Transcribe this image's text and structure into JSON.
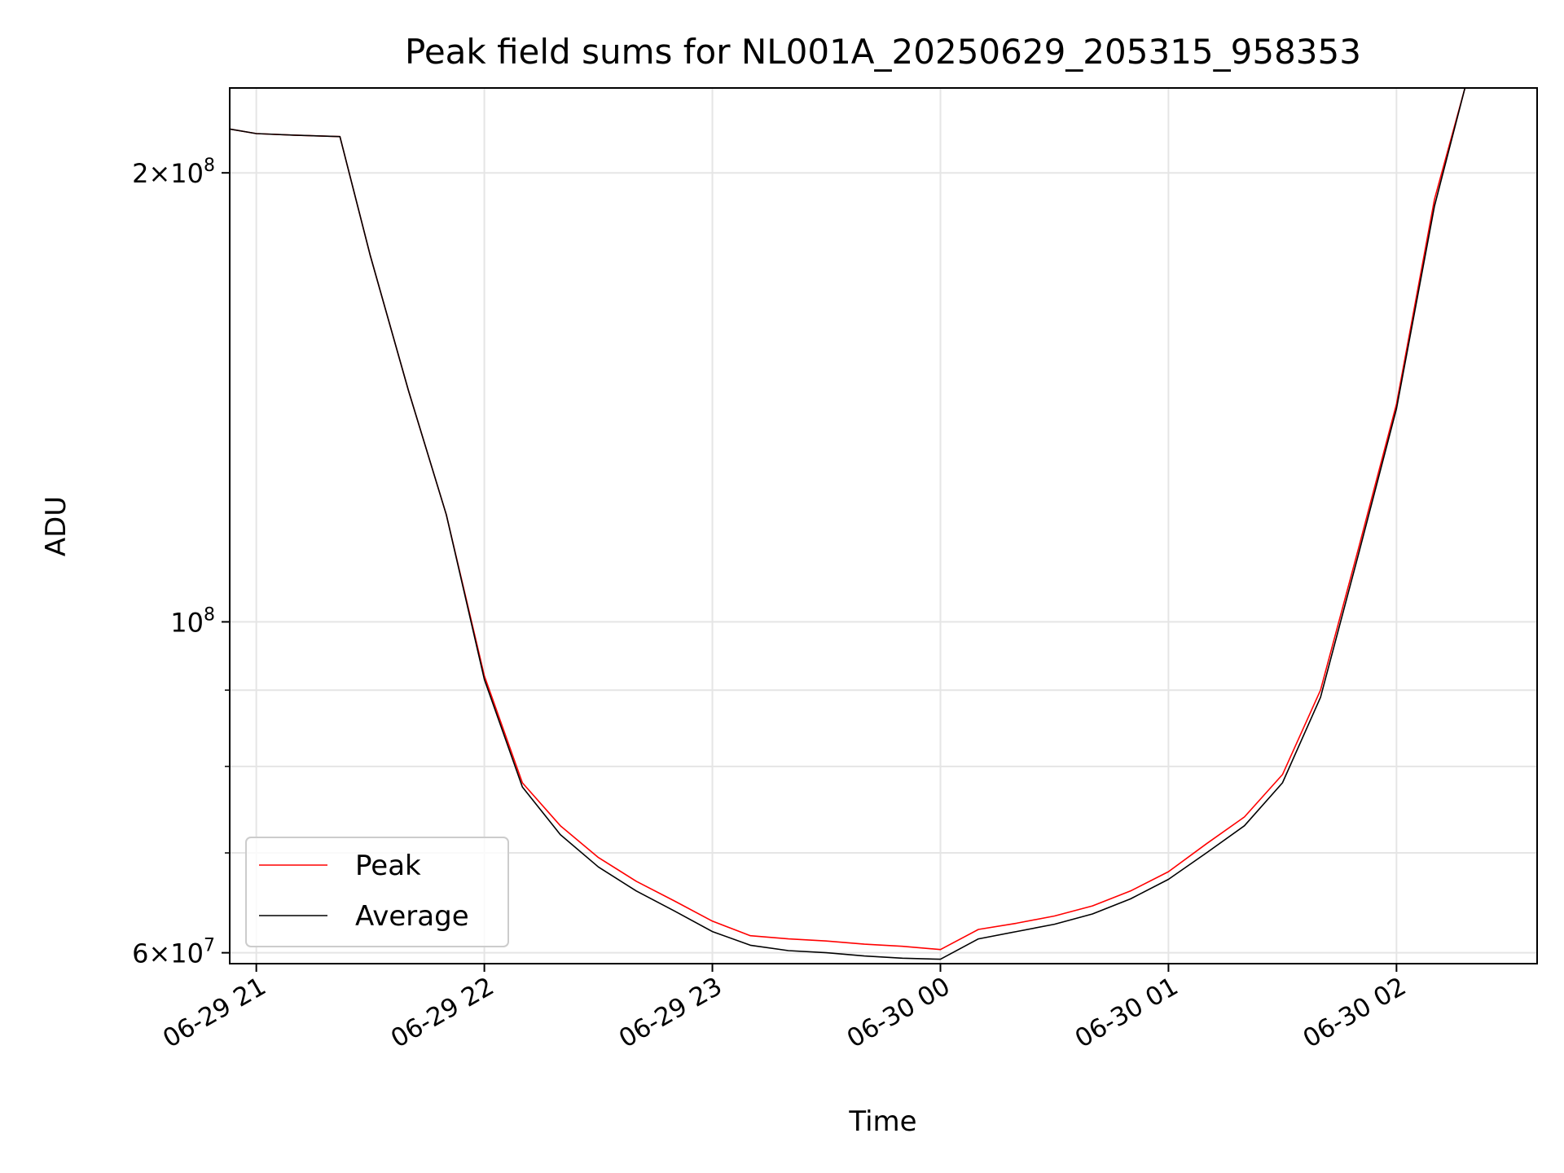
{
  "chart_data": {
    "type": "line",
    "title": "Peak field sums for NL001A_20250629_205315_958353",
    "xlabel": "Time",
    "ylabel": "ADU",
    "yscale": "log",
    "grid": true,
    "legend_position": "lower-left",
    "xlim": [
      "2025-06-29 20:53",
      "2025-06-30 02:37"
    ],
    "ylim": [
      59000000,
      228000000
    ],
    "x_ticks": [
      {
        "value": "2025-06-29 21:00",
        "label": "06-29 21"
      },
      {
        "value": "2025-06-29 22:00",
        "label": "06-29 22"
      },
      {
        "value": "2025-06-29 23:00",
        "label": "06-29 23"
      },
      {
        "value": "2025-06-30 00:00",
        "label": "06-30 00"
      },
      {
        "value": "2025-06-30 01:00",
        "label": "06-30 01"
      },
      {
        "value": "2025-06-30 02:00",
        "label": "06-30 02"
      }
    ],
    "y_major_ticks": [
      {
        "value": 60000000,
        "mantissa": "6",
        "exponent": "7"
      },
      {
        "value": 100000000,
        "mantissa": "",
        "exponent": "8"
      },
      {
        "value": 200000000,
        "mantissa": "2",
        "exponent": "8"
      }
    ],
    "y_minor_ticks": [
      70000000,
      80000000,
      90000000
    ],
    "series": [
      {
        "name": "Peak",
        "color": "#ff0000",
        "x": [
          "2025-06-29 20:53",
          "2025-06-29 21:00",
          "2025-06-29 21:10",
          "2025-06-29 21:22",
          "2025-06-29 21:30",
          "2025-06-29 21:40",
          "2025-06-29 21:50",
          "2025-06-29 22:00",
          "2025-06-29 22:10",
          "2025-06-29 22:20",
          "2025-06-29 22:30",
          "2025-06-29 22:40",
          "2025-06-29 22:50",
          "2025-06-29 23:00",
          "2025-06-29 23:10",
          "2025-06-29 23:20",
          "2025-06-29 23:30",
          "2025-06-29 23:40",
          "2025-06-29 23:50",
          "2025-06-30 00:00",
          "2025-06-30 00:10",
          "2025-06-30 00:20",
          "2025-06-30 00:30",
          "2025-06-30 00:40",
          "2025-06-30 00:50",
          "2025-06-30 01:00",
          "2025-06-30 01:10",
          "2025-06-30 01:20",
          "2025-06-30 01:30",
          "2025-06-30 01:40",
          "2025-06-30 01:50",
          "2025-06-30 02:00",
          "2025-06-30 02:10",
          "2025-06-30 02:18"
        ],
        "values": [
          214000000,
          212500000,
          212000000,
          211500000,
          176000000,
          143000000,
          118000000,
          92000000,
          78000000,
          73000000,
          69500000,
          67000000,
          65000000,
          63000000,
          61600000,
          61300000,
          61100000,
          60800000,
          60600000,
          60300000,
          62200000,
          62800000,
          63500000,
          64500000,
          66000000,
          68000000,
          71000000,
          74000000,
          79000000,
          90000000,
          112000000,
          140000000,
          192000000,
          228000000
        ]
      },
      {
        "name": "Average",
        "color": "#000000",
        "x": [
          "2025-06-29 20:53",
          "2025-06-29 21:00",
          "2025-06-29 21:10",
          "2025-06-29 21:22",
          "2025-06-29 21:30",
          "2025-06-29 21:40",
          "2025-06-29 21:50",
          "2025-06-29 22:00",
          "2025-06-29 22:10",
          "2025-06-29 22:20",
          "2025-06-29 22:30",
          "2025-06-29 22:40",
          "2025-06-29 22:50",
          "2025-06-29 23:00",
          "2025-06-29 23:10",
          "2025-06-29 23:20",
          "2025-06-29 23:30",
          "2025-06-29 23:40",
          "2025-06-29 23:50",
          "2025-06-30 00:00",
          "2025-06-30 00:10",
          "2025-06-30 00:20",
          "2025-06-30 00:30",
          "2025-06-30 00:40",
          "2025-06-30 00:50",
          "2025-06-30 01:00",
          "2025-06-30 01:10",
          "2025-06-30 01:20",
          "2025-06-30 01:30",
          "2025-06-30 01:40",
          "2025-06-30 01:50",
          "2025-06-30 02:00",
          "2025-06-30 02:10",
          "2025-06-30 02:18"
        ],
        "values": [
          214000000,
          212500000,
          212000000,
          211500000,
          176000000,
          143000000,
          118000000,
          91500000,
          77500000,
          72000000,
          68500000,
          66000000,
          64000000,
          62000000,
          60700000,
          60200000,
          60000000,
          59700000,
          59500000,
          59400000,
          61300000,
          62000000,
          62700000,
          63700000,
          65200000,
          67200000,
          70000000,
          73000000,
          78000000,
          89000000,
          111000000,
          139000000,
          190000000,
          228000000
        ]
      }
    ]
  }
}
